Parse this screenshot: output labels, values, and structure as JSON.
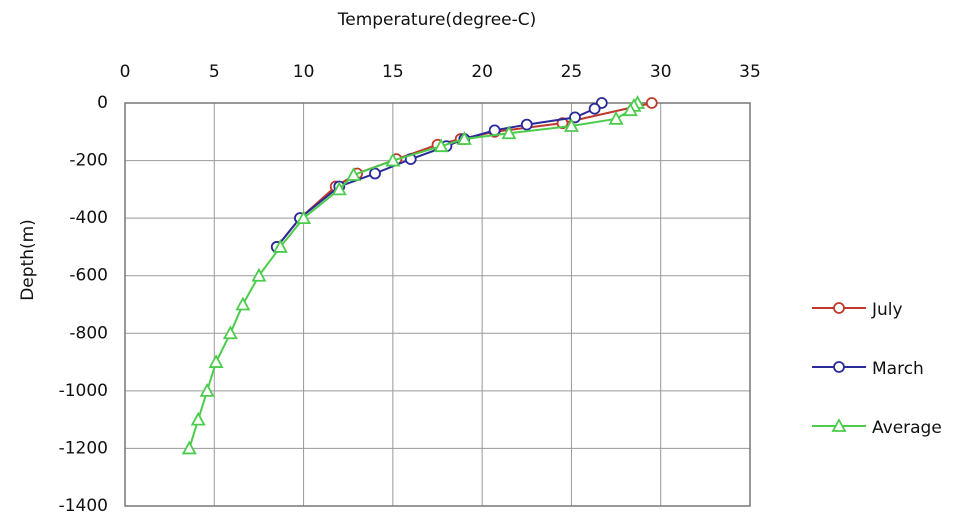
{
  "chart_data": {
    "type": "line",
    "xlabel": "Temperature(degree-C)",
    "ylabel": "Depth(m)",
    "xlim": [
      0,
      35
    ],
    "xticks": [
      0,
      5,
      10,
      15,
      20,
      25,
      30,
      35
    ],
    "ylim": [
      -1400,
      0
    ],
    "yticks": [
      0,
      -200,
      -400,
      -600,
      -800,
      -1000,
      -1200,
      -1400
    ],
    "grid": true,
    "legend": "right",
    "series": [
      {
        "name": "July",
        "color": "#c0392b",
        "marker": "circle",
        "x": [
          29.5,
          24.5,
          20.7,
          18.8,
          17.5,
          15.2,
          13.0,
          11.8,
          9.8,
          8.5
        ],
        "values": [
          0,
          -70,
          -100,
          -125,
          -145,
          -195,
          -245,
          -290,
          -400,
          -500
        ]
      },
      {
        "name": "March",
        "color": "#2a2a9a",
        "marker": "circle",
        "x": [
          26.7,
          26.3,
          25.2,
          22.5,
          20.7,
          19.0,
          18.0,
          16.0,
          14.0,
          12.0,
          9.8,
          8.5
        ],
        "values": [
          0,
          -20,
          -50,
          -75,
          -95,
          -125,
          -150,
          -195,
          -245,
          -290,
          -400,
          -500
        ]
      },
      {
        "name": "Average",
        "color": "#4ccc4c",
        "marker": "triangle",
        "x": [
          28.7,
          28.5,
          28.3,
          27.5,
          25.0,
          21.5,
          19.0,
          17.7,
          15.0,
          12.8,
          12.0,
          10.0,
          8.7,
          7.5,
          6.6,
          5.9,
          5.1,
          4.6,
          4.1,
          3.6
        ],
        "values": [
          0,
          -10,
          -25,
          -55,
          -80,
          -105,
          -125,
          -150,
          -200,
          -250,
          -300,
          -400,
          -500,
          -600,
          -700,
          -800,
          -900,
          -1000,
          -1100,
          -1200
        ]
      }
    ]
  }
}
